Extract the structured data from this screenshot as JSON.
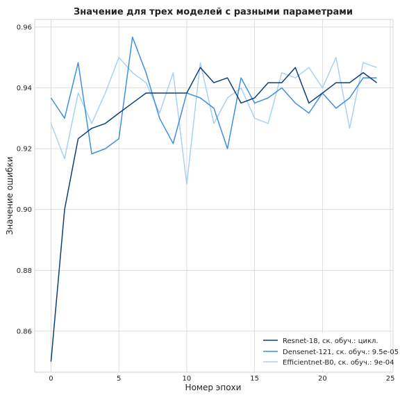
{
  "chart_data": {
    "type": "line",
    "title": "Значение  для трех моделей с разными параметрами",
    "xlabel": "Номер эпохи",
    "ylabel": "Значение ошибки",
    "xlim": [
      -1.2,
      25.2
    ],
    "ylim": [
      0.8465,
      0.9625
    ],
    "xticks": [
      0,
      5,
      10,
      15,
      20,
      25
    ],
    "yticks": [
      0.86,
      0.88,
      0.9,
      0.92,
      0.94,
      0.96
    ],
    "ytick_labels": [
      "0.86",
      "0.88",
      "0.90",
      "0.92",
      "0.94",
      "0.96"
    ],
    "grid": true,
    "legend_position": "lower-right",
    "x": [
      0,
      1,
      2,
      3,
      4,
      5,
      6,
      7,
      8,
      9,
      10,
      11,
      12,
      13,
      14,
      15,
      16,
      17,
      18,
      19,
      20,
      21,
      22,
      23,
      24
    ],
    "series": [
      {
        "name": "Resnet-18, ск. обуч.: цикл.",
        "color": "#0b3f78",
        "values": [
          0.85,
          0.9,
          0.9233,
          0.9267,
          0.9283,
          0.9317,
          0.935,
          0.9383,
          0.9383,
          0.9383,
          0.9383,
          0.9467,
          0.9417,
          0.9433,
          0.935,
          0.9367,
          0.9417,
          0.9417,
          0.9467,
          0.935,
          0.9383,
          0.9417,
          0.9417,
          0.945,
          0.9417
        ]
      },
      {
        "name": "Densenet-121, ск. обуч.: 9.5e-05",
        "color": "#3d8fe0",
        "values": [
          0.9367,
          0.93,
          0.9483,
          0.9183,
          0.92,
          0.9233,
          0.9567,
          0.945,
          0.93,
          0.9217,
          0.9383,
          0.9367,
          0.9333,
          0.92,
          0.9433,
          0.935,
          0.9367,
          0.94,
          0.935,
          0.9317,
          0.9383,
          0.9333,
          0.9367,
          0.9433,
          0.9433
        ]
      },
      {
        "name": "Efficientnet-B0, ск. обуч.: 9e-04",
        "color": "#a8d1f5",
        "values": [
          0.9283,
          0.9167,
          0.9383,
          0.9283,
          0.9383,
          0.95,
          0.945,
          0.9417,
          0.9317,
          0.945,
          0.9083,
          0.9483,
          0.9283,
          0.9367,
          0.94,
          0.93,
          0.9283,
          0.945,
          0.9433,
          0.9467,
          0.94,
          0.95,
          0.9267,
          0.9483,
          0.9467
        ]
      }
    ]
  }
}
